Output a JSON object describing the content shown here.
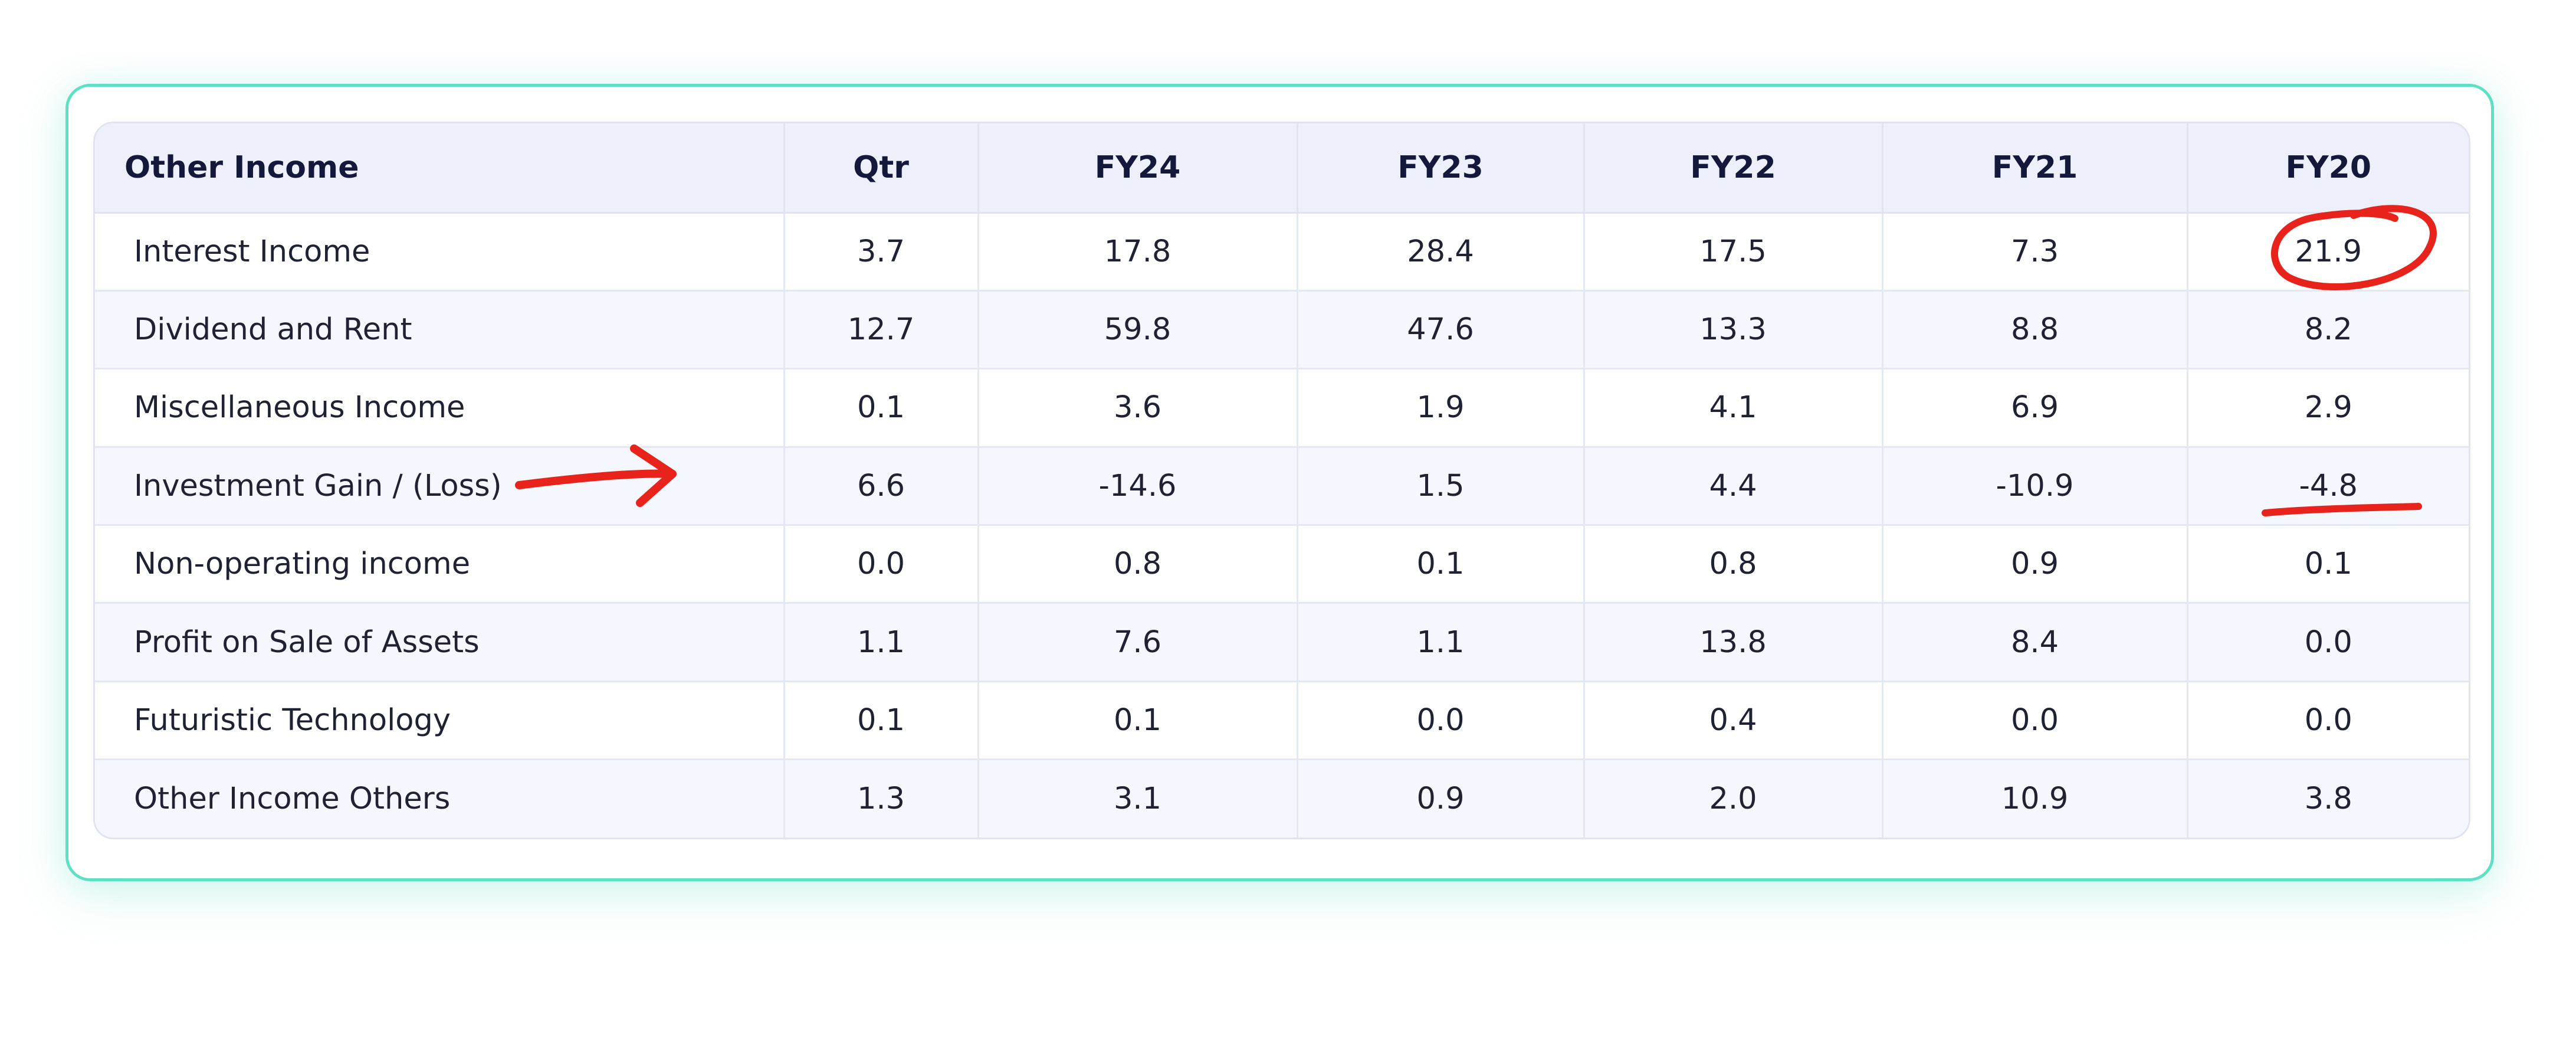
{
  "table": {
    "header": [
      "Other Income",
      "Qtr",
      "FY24",
      "FY23",
      "FY22",
      "FY21",
      "FY20"
    ],
    "rows": [
      [
        "Interest Income",
        "3.7",
        "17.8",
        "28.4",
        "17.5",
        "7.3",
        "21.9"
      ],
      [
        "Dividend and Rent",
        "12.7",
        "59.8",
        "47.6",
        "13.3",
        "8.8",
        "8.2"
      ],
      [
        "Miscellaneous Income",
        "0.1",
        "3.6",
        "1.9",
        "4.1",
        "6.9",
        "2.9"
      ],
      [
        "Investment Gain / (Loss)",
        "6.6",
        "-14.6",
        "1.5",
        "4.4",
        "-10.9",
        "-4.8"
      ],
      [
        "Non-operating income",
        "0.0",
        "0.8",
        "0.1",
        "0.8",
        "0.9",
        "0.1"
      ],
      [
        "Profit on Sale of Assets",
        "1.1",
        "7.6",
        "1.1",
        "13.8",
        "8.4",
        "0.0"
      ],
      [
        "Futuristic Technology",
        "0.1",
        "0.1",
        "0.0",
        "0.4",
        "0.0",
        "0.0"
      ],
      [
        "Other Income Others",
        "1.3",
        "3.1",
        "0.9",
        "2.0",
        "10.9",
        "3.8"
      ]
    ]
  },
  "annotations": {
    "color": "#e8231c",
    "marks": [
      {
        "type": "circle",
        "target": "Interest Income / FY20"
      },
      {
        "type": "arrow",
        "target": "Investment Gain / (Loss)"
      },
      {
        "type": "underline",
        "target": "Investment Gain / (Loss) / FY20"
      }
    ]
  },
  "colors": {
    "card_border": "#5ee0c5",
    "header_bg": "#edf0fb",
    "stripe_bg": "#f4f7fd",
    "header_text": "#14183a"
  }
}
